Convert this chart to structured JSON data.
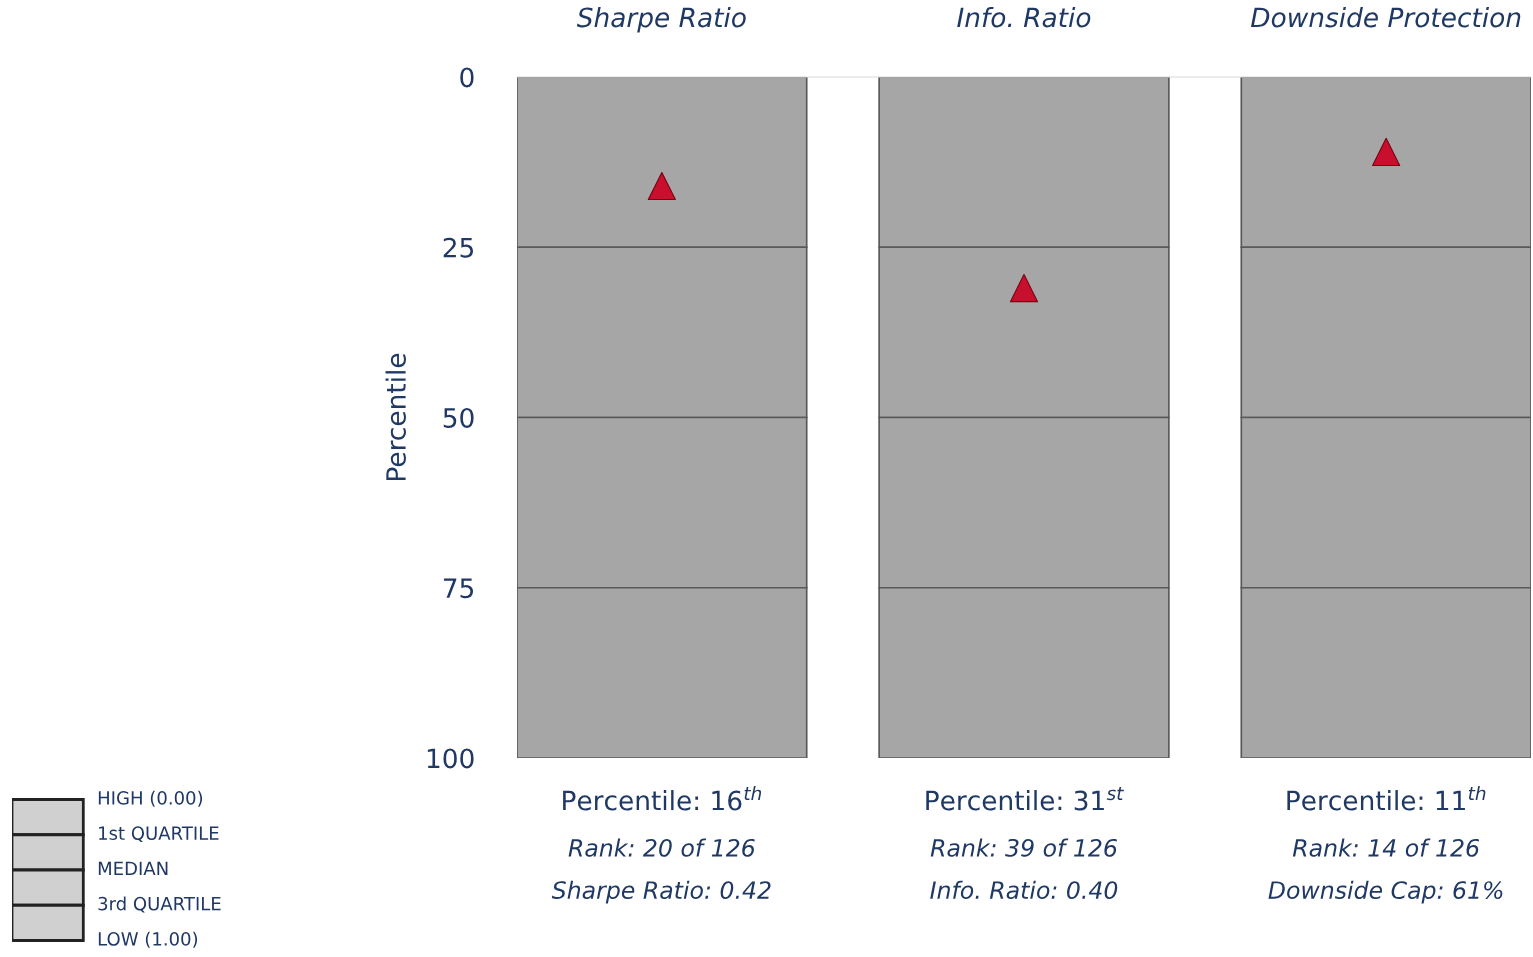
{
  "chart_data": [
    {
      "type": "bar",
      "ylabel": "Percentile",
      "categories": [
        "Sharpe Ratio",
        "Info. Ratio",
        "Downside Protection"
      ],
      "stacked": true,
      "ylim": [
        100,
        0
      ],
      "yticks": [
        0,
        25,
        50,
        75,
        100
      ],
      "grid": false,
      "series": [
        {
          "color": "#a6a6a6",
          "values": [
            25,
            25,
            25
          ]
        },
        {
          "color": "#a6a6a6",
          "values": [
            25,
            25,
            25
          ]
        },
        {
          "color": "#a6a6a6",
          "values": [
            25,
            25,
            25
          ]
        },
        {
          "color": "#a6a6a6",
          "values": [
            25,
            25,
            25
          ]
        },
        {
          "type": "scatter",
          "marker": "triangle",
          "color": "#c8102e",
          "values": [
            16,
            31,
            11
          ]
        }
      ],
      "annotations": [
        "Percentile: 16$^{th}$",
        "Rank: 20 of 126",
        "Sharpe Ratio: 0.42",
        "Percentile: 31$^{st}$",
        "Rank: 39 of 126",
        "Info. Ratio: 0.40",
        "Percentile: 11$^{th}$",
        "Rank: 14 of 126",
        "Downside Cap: 61%"
      ]
    },
    {
      "type": "other",
      "annotations": [
        "HIGH (0.00)",
        "1st QUARTILE",
        "MEDIAN",
        "3rd QUARTILE",
        "LOW (1.00)"
      ]
    }
  ]
}
